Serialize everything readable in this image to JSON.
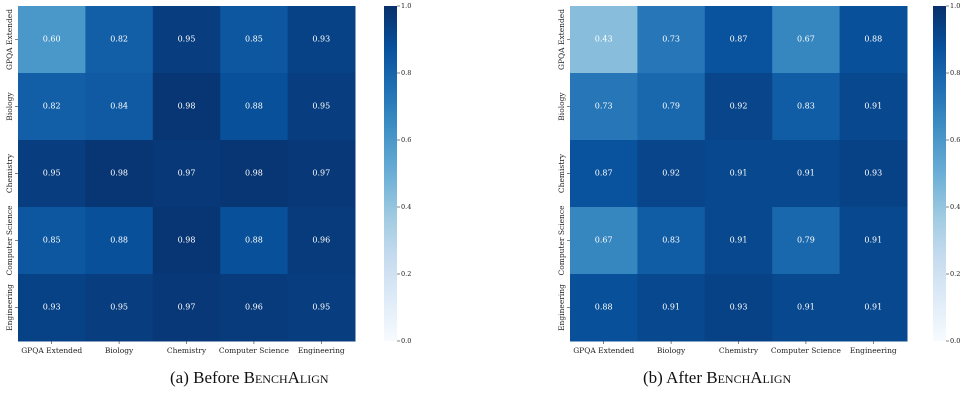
{
  "chart_data": [
    {
      "type": "heatmap",
      "caption_prefix": "(a) Before ",
      "caption_name": "BenchAlign",
      "rows": [
        "GPQA Extended",
        "Biology",
        "Chemistry",
        "Computer Science",
        "Engineering"
      ],
      "cols": [
        "GPQA Extended",
        "Biology",
        "Chemistry",
        "Computer Science",
        "Engineering"
      ],
      "values": [
        [
          0.6,
          0.82,
          0.95,
          0.85,
          0.93
        ],
        [
          0.82,
          0.84,
          0.98,
          0.88,
          0.95
        ],
        [
          0.95,
          0.98,
          0.97,
          0.98,
          0.97
        ],
        [
          0.85,
          0.88,
          0.98,
          0.88,
          0.96
        ],
        [
          0.93,
          0.95,
          0.97,
          0.96,
          0.95
        ]
      ],
      "colorbar": {
        "min": 0.0,
        "max": 1.0,
        "ticks": [
          "0.0",
          "0.2",
          "0.4",
          "0.6",
          "0.8",
          "1.0"
        ],
        "colormap": "Blues"
      }
    },
    {
      "type": "heatmap",
      "caption_prefix": "(b) After ",
      "caption_name": "BenchAlign",
      "rows": [
        "GPQA Extended",
        "Biology",
        "Chemistry",
        "Computer Science",
        "Engineering"
      ],
      "cols": [
        "GPQA Extended",
        "Biology",
        "Chemistry",
        "Computer Science",
        "Engineering"
      ],
      "values": [
        [
          0.43,
          0.73,
          0.87,
          0.67,
          0.88
        ],
        [
          0.73,
          0.79,
          0.92,
          0.83,
          0.91
        ],
        [
          0.87,
          0.92,
          0.91,
          0.91,
          0.93
        ],
        [
          0.67,
          0.83,
          0.91,
          0.79,
          0.91
        ],
        [
          0.88,
          0.91,
          0.93,
          0.91,
          0.91
        ]
      ],
      "colorbar": {
        "min": 0.0,
        "max": 1.0,
        "ticks": [
          "0.0",
          "0.2",
          "0.4",
          "0.6",
          "0.8",
          "1.0"
        ],
        "colormap": "Blues"
      }
    }
  ]
}
